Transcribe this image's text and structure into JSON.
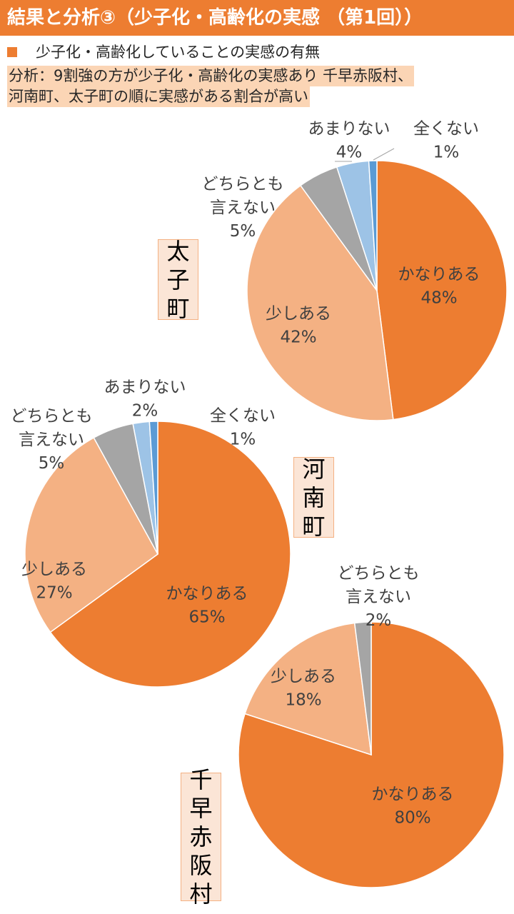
{
  "header": {
    "title": "結果と分析③（少子化・高齢化の実感 （第1回））"
  },
  "legend": {
    "text": "少子化・高齢化していることの実感の有無"
  },
  "analysis": {
    "line1": "分析：9割強の方が少子化・高齢化の実感あり 千早赤阪村、",
    "line2": "河南町、太子町の順に実感がある割合が高い"
  },
  "colors": {
    "kanari": "#ED7D31",
    "sukoshi": "#F4B183",
    "dochira": "#A5A5A5",
    "amari": "#9DC3E6",
    "mattaku": "#5B9BD5",
    "header_bg": "#ED7D31",
    "town_bg": "#FBE5D6"
  },
  "chart_data": [
    {
      "type": "pie",
      "town": "太子町",
      "categories": [
        "かなりある",
        "少しある",
        "どちらとも言えない",
        "あまりない",
        "全くない"
      ],
      "values": [
        48,
        42,
        5,
        4,
        1
      ],
      "labels": [
        [
          "かなりある",
          "48%"
        ],
        [
          "少しある",
          "42%"
        ],
        [
          "どちらとも",
          "言えない",
          "5%"
        ],
        [
          "あまりない",
          "4%"
        ],
        [
          "全くない",
          "1%"
        ]
      ]
    },
    {
      "type": "pie",
      "town": "河南町",
      "categories": [
        "かなりある",
        "少しある",
        "どちらとも言えない",
        "あまりない",
        "全くない"
      ],
      "values": [
        65,
        27,
        5,
        2,
        1
      ],
      "labels": [
        [
          "かなりある",
          "65%"
        ],
        [
          "少しある",
          "27%"
        ],
        [
          "どちらとも",
          "言えない",
          "5%"
        ],
        [
          "あまりない",
          "2%"
        ],
        [
          "全くない",
          "1%"
        ]
      ]
    },
    {
      "type": "pie",
      "town": "千早赤阪村",
      "categories": [
        "かなりある",
        "少しある",
        "どちらとも言えない"
      ],
      "values": [
        80,
        18,
        2
      ],
      "labels": [
        [
          "かなりある",
          "80%"
        ],
        [
          "少しある",
          "18%"
        ],
        [
          "どちらとも",
          "言えない",
          "2%"
        ]
      ]
    }
  ]
}
